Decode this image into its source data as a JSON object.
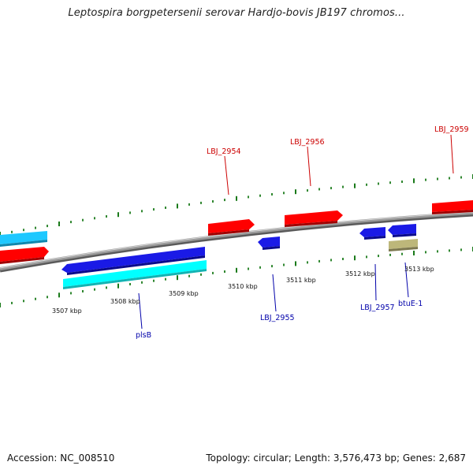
{
  "title": "Leptospira borgpetersenii serovar Hardjo-bovis JB197 chromos...",
  "footer": {
    "accession": "Accession: NC_008510",
    "summary": "Topology: circular; Length: 3,576,473 bp; Genes: 2,687"
  },
  "colors": {
    "backbone": "#8c8c8c",
    "tick": "#1a7a1a",
    "red_feature": "#ff0000",
    "blue_feature": "#1a1ae6",
    "cyan_feature": "#1ec8ff",
    "cyan_bright": "#00ffff",
    "olive_feature": "#bdb77a",
    "label_red": "#cc0000",
    "label_blue": "#0000aa"
  },
  "scale_labels": [
    "3507 kbp",
    "3508 kbp",
    "3509 kbp",
    "3510 kbp",
    "3511 kbp",
    "3512 kbp",
    "3513 kbp"
  ],
  "gene_labels_top": [
    "LBJ_2954",
    "LBJ_2956",
    "LBJ_2959"
  ],
  "gene_labels_bottom": [
    "plsB",
    "LBJ_2955",
    "LBJ_2957",
    "btuE-1"
  ]
}
